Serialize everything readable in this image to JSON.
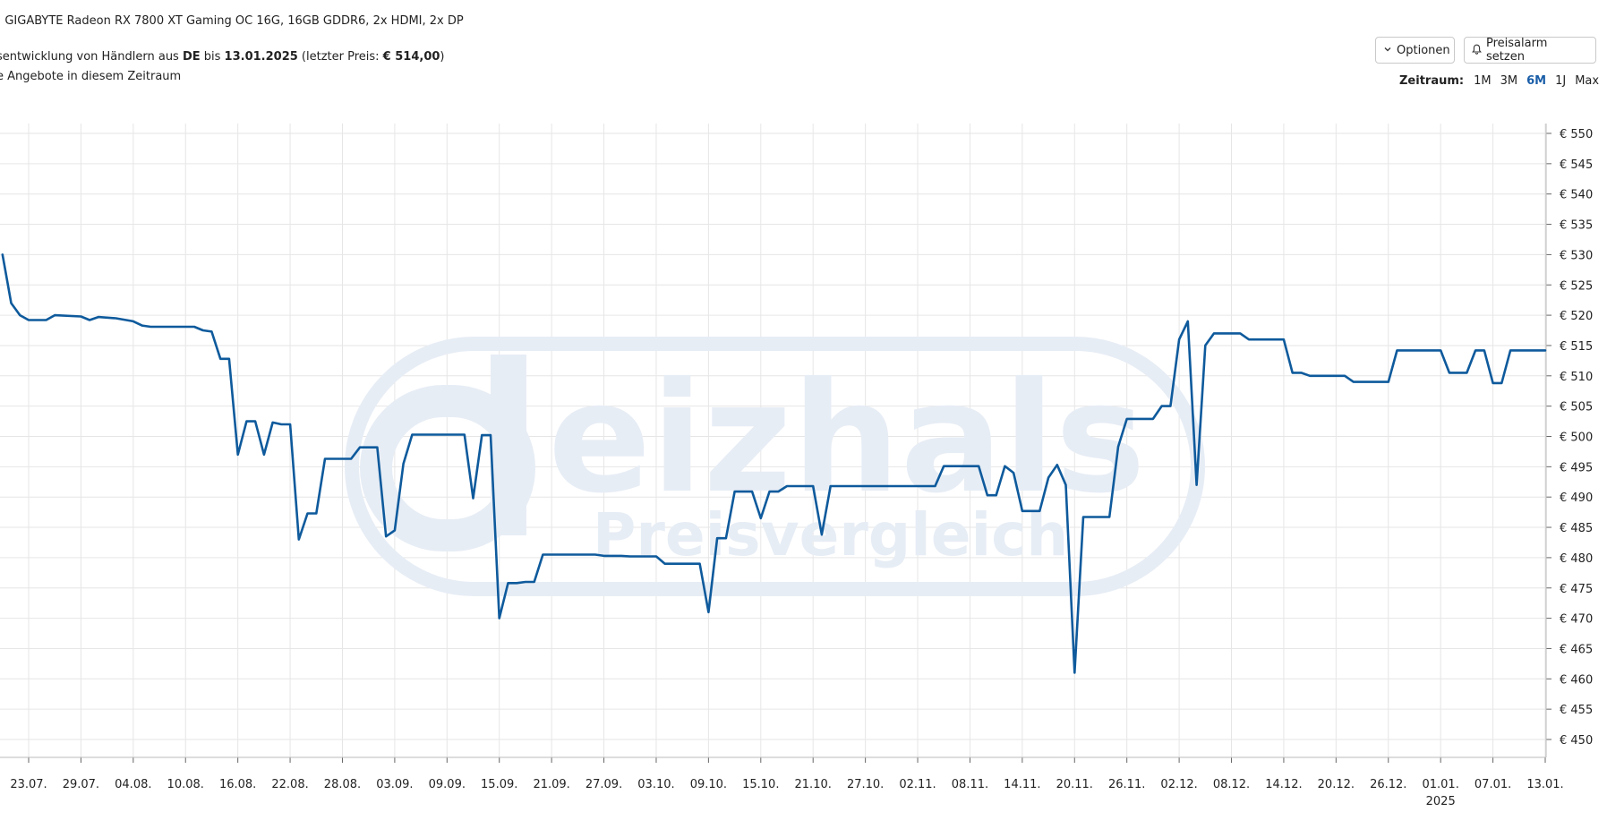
{
  "header": {
    "line1_prefix": ":",
    "line1_product": "GIGABYTE Radeon RX 7800 XT Gaming OC 16G, 16GB GDDR6, 2x HDMI, 2x DP",
    "line2_a": "sentwicklung von Händlern aus ",
    "line2_country": "DE",
    "line2_b": " bis ",
    "line2_date": "13.01.2025",
    "line2_c": " (letzter Preis: ",
    "line2_price": "€ 514,00",
    "line2_d": ")",
    "line3": "e Angebote in diesem Zeitraum"
  },
  "controls": {
    "options_label": "Optionen",
    "alarm_label": "Preisalarm setzen",
    "zeitraum_label": "Zeitraum:",
    "ranges": [
      "1M",
      "3M",
      "6M",
      "1J",
      "Max"
    ],
    "active_range": "6M"
  },
  "chart_data": {
    "type": "line",
    "title": "",
    "xlabel": "",
    "ylabel": "",
    "ylim": [
      445,
      552
    ],
    "y_ticks": [
      450,
      455,
      460,
      465,
      470,
      475,
      480,
      485,
      490,
      495,
      500,
      505,
      510,
      515,
      520,
      525,
      530,
      535,
      540,
      545,
      550
    ],
    "y_tick_labels": [
      "€ 450",
      "€ 455",
      "€ 460",
      "€ 465",
      "€ 470",
      "€ 475",
      "€ 480",
      "€ 485",
      "€ 490",
      "€ 495",
      "€ 500",
      "€ 505",
      "€ 510",
      "€ 515",
      "€ 520",
      "€ 525",
      "€ 530",
      "€ 535",
      "€ 540",
      "€ 545",
      "€ 550"
    ],
    "x_ticks": [
      "2024-07-23",
      "2024-07-29",
      "2024-08-04",
      "2024-08-10",
      "2024-08-16",
      "2024-08-22",
      "2024-08-28",
      "2024-09-03",
      "2024-09-09",
      "2024-09-15",
      "2024-09-21",
      "2024-09-27",
      "2024-10-03",
      "2024-10-09",
      "2024-10-15",
      "2024-10-21",
      "2024-10-27",
      "2024-11-02",
      "2024-11-08",
      "2024-11-14",
      "2024-11-20",
      "2024-11-26",
      "2024-12-02",
      "2024-12-08",
      "2024-12-14",
      "2024-12-20",
      "2024-12-26",
      "2025-01-01",
      "2025-01-07",
      "2025-01-13"
    ],
    "x_tick_labels": [
      "23.07.",
      "29.07.",
      "04.08.",
      "10.08.",
      "16.08.",
      "22.08.",
      "28.08.",
      "03.09.",
      "09.09.",
      "15.09.",
      "21.09.",
      "27.09.",
      "03.10.",
      "09.10.",
      "15.10.",
      "21.10.",
      "27.10.",
      "02.11.",
      "08.11.",
      "14.11.",
      "20.11.",
      "26.11.",
      "02.12.",
      "08.12.",
      "14.12.",
      "20.12.",
      "26.12.",
      "01.01.",
      "07.01.",
      "13.01."
    ],
    "year_label": "2025",
    "watermark_big": "eizhals",
    "watermark_sub": "Preisvergleich",
    "grid": true,
    "line_color": "#0e5a9c",
    "series": [
      {
        "points": [
          [
            "2024-07-20",
            530
          ],
          [
            "2024-07-21",
            522
          ],
          [
            "2024-07-22",
            520
          ],
          [
            "2024-07-23",
            519.2
          ],
          [
            "2024-07-25",
            519.2
          ],
          [
            "2024-07-26",
            520
          ],
          [
            "2024-07-29",
            519.8
          ],
          [
            "2024-07-30",
            519.2
          ],
          [
            "2024-07-31",
            519.7
          ],
          [
            "2024-08-02",
            519.5
          ],
          [
            "2024-08-04",
            519
          ],
          [
            "2024-08-05",
            518.3
          ],
          [
            "2024-08-06",
            518.1
          ],
          [
            "2024-08-11",
            518.1
          ],
          [
            "2024-08-12",
            517.5
          ],
          [
            "2024-08-13",
            517.3
          ],
          [
            "2024-08-14",
            512.8
          ],
          [
            "2024-08-15",
            512.8
          ],
          [
            "2024-08-16",
            497
          ],
          [
            "2024-08-17",
            502.5
          ],
          [
            "2024-08-18",
            502.5
          ],
          [
            "2024-08-19",
            497
          ],
          [
            "2024-08-20",
            502.3
          ],
          [
            "2024-08-21",
            502
          ],
          [
            "2024-08-22",
            502
          ],
          [
            "2024-08-23",
            483
          ],
          [
            "2024-08-24",
            487.3
          ],
          [
            "2024-08-25",
            487.3
          ],
          [
            "2024-08-26",
            496.3
          ],
          [
            "2024-08-29",
            496.3
          ],
          [
            "2024-08-30",
            498.2
          ],
          [
            "2024-09-01",
            498.2
          ],
          [
            "2024-09-02",
            483.5
          ],
          [
            "2024-09-03",
            484.5
          ],
          [
            "2024-09-04",
            495.5
          ],
          [
            "2024-09-05",
            500.3
          ],
          [
            "2024-09-11",
            500.3
          ],
          [
            "2024-09-12",
            489.8
          ],
          [
            "2024-09-13",
            500.2
          ],
          [
            "2024-09-14",
            500.2
          ],
          [
            "2024-09-15",
            470
          ],
          [
            "2024-09-16",
            475.8
          ],
          [
            "2024-09-17",
            475.8
          ],
          [
            "2024-09-18",
            476
          ],
          [
            "2024-09-19",
            476
          ],
          [
            "2024-09-20",
            480.5
          ],
          [
            "2024-09-26",
            480.5
          ],
          [
            "2024-09-27",
            480.3
          ],
          [
            "2024-09-29",
            480.3
          ],
          [
            "2024-09-30",
            480.2
          ],
          [
            "2024-10-03",
            480.2
          ],
          [
            "2024-10-04",
            479
          ],
          [
            "2024-10-08",
            479
          ],
          [
            "2024-10-09",
            471
          ],
          [
            "2024-10-10",
            483.2
          ],
          [
            "2024-10-11",
            483.2
          ],
          [
            "2024-10-12",
            490.9
          ],
          [
            "2024-10-14",
            490.9
          ],
          [
            "2024-10-15",
            486.5
          ],
          [
            "2024-10-16",
            490.9
          ],
          [
            "2024-10-17",
            490.9
          ],
          [
            "2024-10-18",
            491.8
          ],
          [
            "2024-10-21",
            491.8
          ],
          [
            "2024-10-22",
            483.8
          ],
          [
            "2024-10-23",
            491.8
          ],
          [
            "2024-11-04",
            491.8
          ],
          [
            "2024-11-05",
            495.1
          ],
          [
            "2024-11-09",
            495.1
          ],
          [
            "2024-11-10",
            490.3
          ],
          [
            "2024-11-11",
            490.3
          ],
          [
            "2024-11-12",
            495.1
          ],
          [
            "2024-11-13",
            494
          ],
          [
            "2024-11-14",
            487.7
          ],
          [
            "2024-11-16",
            487.7
          ],
          [
            "2024-11-17",
            493.2
          ],
          [
            "2024-11-18",
            495.3
          ],
          [
            "2024-11-19",
            492
          ],
          [
            "2024-11-20",
            461
          ],
          [
            "2024-11-21",
            486.7
          ],
          [
            "2024-11-24",
            486.7
          ],
          [
            "2024-11-25",
            498.3
          ],
          [
            "2024-11-26",
            502.9
          ],
          [
            "2024-11-29",
            502.9
          ],
          [
            "2024-11-30",
            505
          ],
          [
            "2024-12-01",
            505
          ],
          [
            "2024-12-02",
            516
          ],
          [
            "2024-12-03",
            519
          ],
          [
            "2024-12-04",
            492
          ],
          [
            "2024-12-05",
            515
          ],
          [
            "2024-12-06",
            517
          ],
          [
            "2024-12-09",
            517
          ],
          [
            "2024-12-10",
            516
          ],
          [
            "2024-12-14",
            516
          ],
          [
            "2024-12-15",
            510.5
          ],
          [
            "2024-12-16",
            510.5
          ],
          [
            "2024-12-17",
            510
          ],
          [
            "2024-12-21",
            510
          ],
          [
            "2024-12-22",
            509
          ],
          [
            "2024-12-26",
            509
          ],
          [
            "2024-12-27",
            514.2
          ],
          [
            "2025-01-01",
            514.2
          ],
          [
            "2025-01-02",
            510.5
          ],
          [
            "2025-01-04",
            510.5
          ],
          [
            "2025-01-05",
            514.2
          ],
          [
            "2025-01-06",
            514.2
          ],
          [
            "2025-01-07",
            508.8
          ],
          [
            "2025-01-08",
            508.8
          ],
          [
            "2025-01-09",
            514.2
          ],
          [
            "2025-01-13",
            514.2
          ]
        ]
      }
    ]
  }
}
